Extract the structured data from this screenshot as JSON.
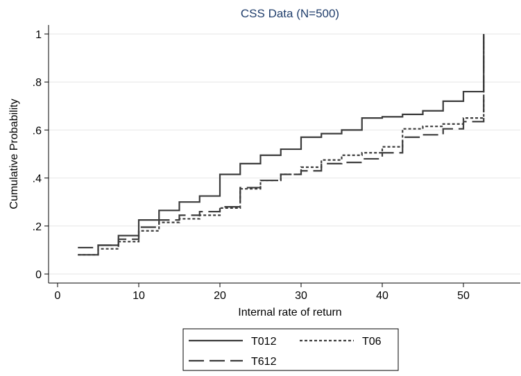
{
  "chart_data": {
    "type": "line",
    "title": "CSS Data (N=500)",
    "xlabel": "Internal rate of return",
    "ylabel": "Cumulative Probability",
    "xlim": [
      0,
      52.5
    ],
    "ylim": [
      0,
      1
    ],
    "x_ticks": [
      0,
      10,
      20,
      30,
      40,
      50
    ],
    "x_tick_labels": [
      "0",
      "10",
      "20",
      "30",
      "40",
      "50"
    ],
    "y_ticks": [
      0,
      0.2,
      0.4,
      0.6,
      0.8,
      1
    ],
    "y_tick_labels": [
      "0",
      ".2",
      ".4",
      ".6",
      ".8",
      "1"
    ],
    "grid": "horizontal",
    "legend": "below",
    "colors": {
      "title": "#1f3d6b",
      "grid": "#e6e6e6",
      "line": "#3a3a3a",
      "axis": "#000000"
    },
    "series": [
      {
        "name": "T012",
        "style": "solid",
        "x": [
          2.5,
          5,
          7.5,
          10,
          12.5,
          15,
          17.5,
          20,
          22.5,
          25,
          27.5,
          30,
          32.5,
          35,
          37.5,
          40,
          42.5,
          45,
          47.5,
          50,
          52.5
        ],
        "y": [
          0.08,
          0.12,
          0.16,
          0.225,
          0.265,
          0.3,
          0.325,
          0.415,
          0.46,
          0.495,
          0.52,
          0.57,
          0.585,
          0.6,
          0.65,
          0.655,
          0.665,
          0.68,
          0.72,
          0.76,
          1.0
        ]
      },
      {
        "name": "T06",
        "style": "dotted",
        "x": [
          2.5,
          5,
          7.5,
          10,
          12.5,
          15,
          17.5,
          20,
          22.5,
          25,
          27.5,
          30,
          32.5,
          35,
          37.5,
          40,
          42.5,
          45,
          47.5,
          50,
          52.5
        ],
        "y": [
          0.08,
          0.105,
          0.135,
          0.18,
          0.215,
          0.23,
          0.245,
          0.275,
          0.355,
          0.39,
          0.415,
          0.445,
          0.475,
          0.495,
          0.505,
          0.53,
          0.605,
          0.615,
          0.625,
          0.65,
          1.0
        ]
      },
      {
        "name": "T612",
        "style": "dashed",
        "x": [
          2.5,
          5,
          7.5,
          10,
          12.5,
          15,
          17.5,
          20,
          22.5,
          25,
          27.5,
          30,
          32.5,
          35,
          37.5,
          40,
          42.5,
          45,
          47.5,
          50,
          52.5
        ],
        "y": [
          0.11,
          0.12,
          0.145,
          0.195,
          0.225,
          0.245,
          0.26,
          0.28,
          0.36,
          0.39,
          0.415,
          0.43,
          0.46,
          0.465,
          0.48,
          0.505,
          0.57,
          0.58,
          0.605,
          0.635,
          1.0
        ]
      }
    ]
  }
}
